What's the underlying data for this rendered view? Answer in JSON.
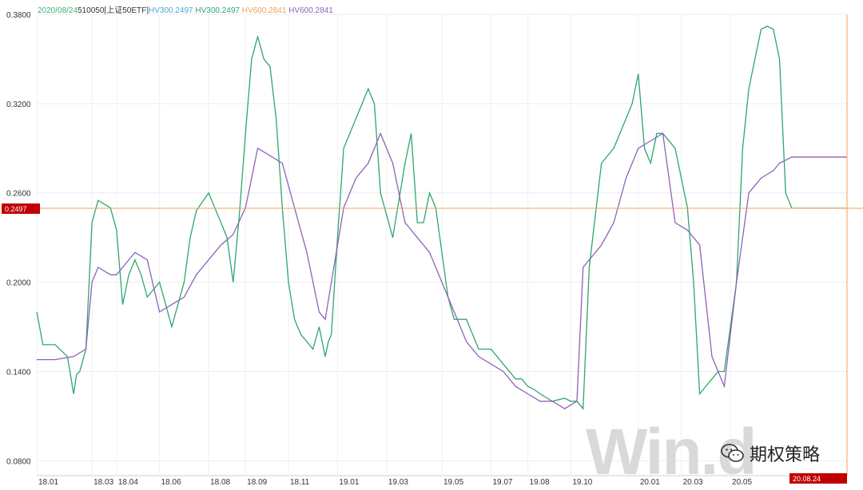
{
  "legend": {
    "date": "2020/08/24",
    "code": "510050[上证50ETF]",
    "hv30a_label": "HV30",
    "hv30a_value": "0.2497",
    "hv30b_label": "HV30",
    "hv30b_value": "0.2497",
    "hv60a_label": "HV60",
    "hv60a_value": "0.2841",
    "hv60b_label": "HV60",
    "hv60b_value": "0.2841"
  },
  "colors": {
    "date": "#3cb371",
    "code": "#333333",
    "hv30a": "#4aa8d8",
    "hv30b": "#2ea66f",
    "hv60a": "#f5a05a",
    "hv60b": "#8e62b8",
    "crosshair": "#f5a05a",
    "tag": "#c00000"
  },
  "watermark": "Win.d",
  "brand_text": "期权策略",
  "chart_data": {
    "type": "line",
    "title": "",
    "xlabel": "",
    "ylabel": "",
    "ylim": [
      0.07,
      0.38
    ],
    "yticks": [
      "0.3800",
      "0.3200",
      "0.2600",
      "0.2000",
      "0.1400",
      "0.0800"
    ],
    "xticks": [
      "18.01",
      "18.03",
      "18.04",
      "18.06",
      "18.08",
      "18.09",
      "18.11",
      "19.01",
      "19.03",
      "19.05",
      "19.07",
      "19.08",
      "19.10",
      "20.01",
      "20.03",
      "20.05",
      "20.08.24"
    ],
    "current_value_tag": "0.2497",
    "current_date_tag": "20.08.24",
    "series": [
      {
        "color": "#2ea66f",
        "x": [
          0,
          1,
          3,
          5,
          6,
          6.5,
          7,
          8,
          9,
          10,
          12,
          13,
          14,
          15,
          16,
          17,
          18,
          20,
          22,
          24,
          25,
          26,
          28,
          29,
          30,
          31,
          32,
          33,
          34,
          35,
          36,
          37,
          38,
          39,
          40,
          41,
          42,
          43,
          44,
          45,
          46,
          47,
          47.5,
          48,
          49,
          50,
          52,
          54,
          55,
          56,
          58,
          60,
          61,
          62,
          63,
          64,
          65,
          66,
          67,
          68,
          70,
          72,
          74,
          75,
          76,
          77,
          78,
          79,
          80,
          81,
          82,
          84,
          86,
          87,
          88,
          89,
          90,
          92,
          94,
          96,
          97,
          98,
          99,
          100,
          101,
          102,
          104,
          106,
          107,
          108,
          109,
          110,
          111,
          112,
          114,
          115,
          116,
          117,
          118,
          119,
          120,
          121,
          122,
          123,
          124,
          125,
          126,
          127,
          128,
          129,
          130,
          131,
          132
        ],
        "y": [
          0.18,
          0.158,
          0.158,
          0.15,
          0.125,
          0.138,
          0.14,
          0.155,
          0.24,
          0.255,
          0.25,
          0.235,
          0.185,
          0.205,
          0.215,
          0.205,
          0.19,
          0.2,
          0.17,
          0.2,
          0.23,
          0.248,
          0.26,
          0.25,
          0.24,
          0.23,
          0.2,
          0.245,
          0.3,
          0.35,
          0.365,
          0.35,
          0.345,
          0.31,
          0.25,
          0.2,
          0.175,
          0.165,
          0.16,
          0.155,
          0.17,
          0.15,
          0.16,
          0.165,
          0.23,
          0.29,
          0.31,
          0.33,
          0.32,
          0.26,
          0.23,
          0.28,
          0.3,
          0.24,
          0.24,
          0.26,
          0.25,
          0.22,
          0.19,
          0.175,
          0.175,
          0.155,
          0.155,
          0.15,
          0.145,
          0.14,
          0.135,
          0.135,
          0.13,
          0.128,
          0.125,
          0.12,
          0.122,
          0.12,
          0.12,
          0.115,
          0.21,
          0.28,
          0.29,
          0.31,
          0.32,
          0.34,
          0.29,
          0.28,
          0.3,
          0.3,
          0.29,
          0.25,
          0.2,
          0.125,
          0.13,
          0.135,
          0.14,
          0.14,
          0.2,
          0.29,
          0.33,
          0.35,
          0.37,
          0.372,
          0.37,
          0.35,
          0.26,
          0.2497,
          0.2497,
          0.2497,
          0.2497,
          0.2497,
          0.2497,
          0.2497,
          0.2497,
          0.2497,
          0.2497
        ]
      },
      {
        "color": "#8e62b8",
        "x": [
          0,
          3,
          6,
          8,
          9,
          10,
          12,
          13,
          14,
          16,
          18,
          20,
          22,
          24,
          26,
          28,
          30,
          32,
          34,
          35,
          36,
          38,
          40,
          42,
          44,
          46,
          47,
          48,
          50,
          52,
          54,
          56,
          58,
          59,
          60,
          62,
          64,
          66,
          68,
          70,
          72,
          74,
          76,
          78,
          80,
          82,
          84,
          86,
          88,
          89,
          90,
          92,
          94,
          96,
          98,
          100,
          102,
          104,
          106,
          108,
          110,
          112,
          114,
          116,
          118,
          120,
          121,
          122,
          123,
          124,
          125,
          126,
          127,
          128,
          129,
          130,
          131,
          132
        ],
        "y": [
          0.148,
          0.148,
          0.15,
          0.155,
          0.2,
          0.21,
          0.205,
          0.205,
          0.21,
          0.22,
          0.215,
          0.18,
          0.185,
          0.19,
          0.205,
          0.215,
          0.225,
          0.232,
          0.25,
          0.27,
          0.29,
          0.285,
          0.28,
          0.25,
          0.22,
          0.18,
          0.175,
          0.2,
          0.25,
          0.27,
          0.28,
          0.3,
          0.28,
          0.26,
          0.24,
          0.23,
          0.22,
          0.2,
          0.18,
          0.16,
          0.15,
          0.145,
          0.14,
          0.13,
          0.125,
          0.12,
          0.12,
          0.115,
          0.12,
          0.21,
          0.215,
          0.225,
          0.24,
          0.27,
          0.29,
          0.295,
          0.3,
          0.24,
          0.235,
          0.225,
          0.15,
          0.13,
          0.2,
          0.26,
          0.27,
          0.275,
          0.28,
          0.282,
          0.2841,
          0.2841,
          0.2841,
          0.2841,
          0.2841,
          0.2841,
          0.2841,
          0.2841,
          0.2841,
          0.2841
        ]
      }
    ]
  }
}
